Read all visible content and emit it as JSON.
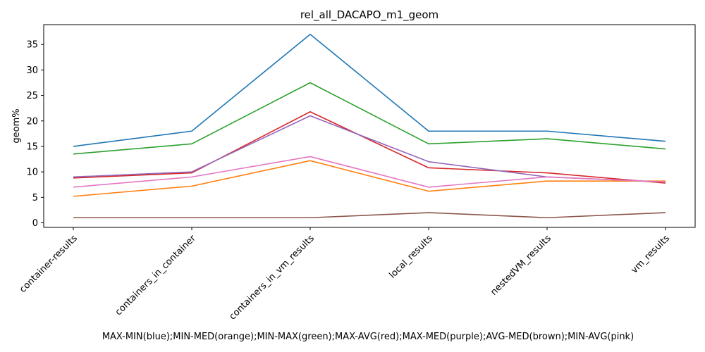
{
  "chart_data": {
    "type": "line",
    "title": "rel_all_DACAPO_m1_geom",
    "xlabel": "MAX-MIN(blue);MIN-MED(orange);MIN-MAX(green);MAX-AVG(red);MAX-MED(purple);AVG-MED(brown);MIN-AVG(pink)",
    "ylabel": "geom%",
    "ylim": [
      -0.9,
      38.9
    ],
    "yticks": [
      0,
      5,
      10,
      15,
      20,
      25,
      30,
      35
    ],
    "grid": false,
    "categories": [
      "container-results",
      "containers_in_container",
      "containers_in_vm_results",
      "local_results",
      "nestedVM_results",
      "vm_results"
    ],
    "series": [
      {
        "color": "#1f77b4",
        "values": [
          15.0,
          18.0,
          37.0,
          18.0,
          18.0,
          16.0
        ]
      },
      {
        "color": "#ff7f0e",
        "values": [
          5.2,
          7.2,
          12.2,
          6.2,
          8.2,
          8.2
        ]
      },
      {
        "color": "#2ca02c",
        "values": [
          13.5,
          15.5,
          27.5,
          15.5,
          16.5,
          14.5
        ]
      },
      {
        "color": "#d62728",
        "values": [
          8.8,
          9.8,
          21.8,
          10.8,
          9.8,
          7.8
        ]
      },
      {
        "color": "#9467bd",
        "values": [
          9.0,
          10.0,
          21.0,
          12.0,
          9.0,
          8.0
        ]
      },
      {
        "color": "#8c564b",
        "values": [
          1.0,
          1.0,
          1.0,
          2.0,
          1.0,
          2.0
        ]
      },
      {
        "color": "#e377c2",
        "values": [
          7.0,
          9.0,
          13.0,
          7.0,
          9.0,
          8.0
        ]
      }
    ]
  }
}
